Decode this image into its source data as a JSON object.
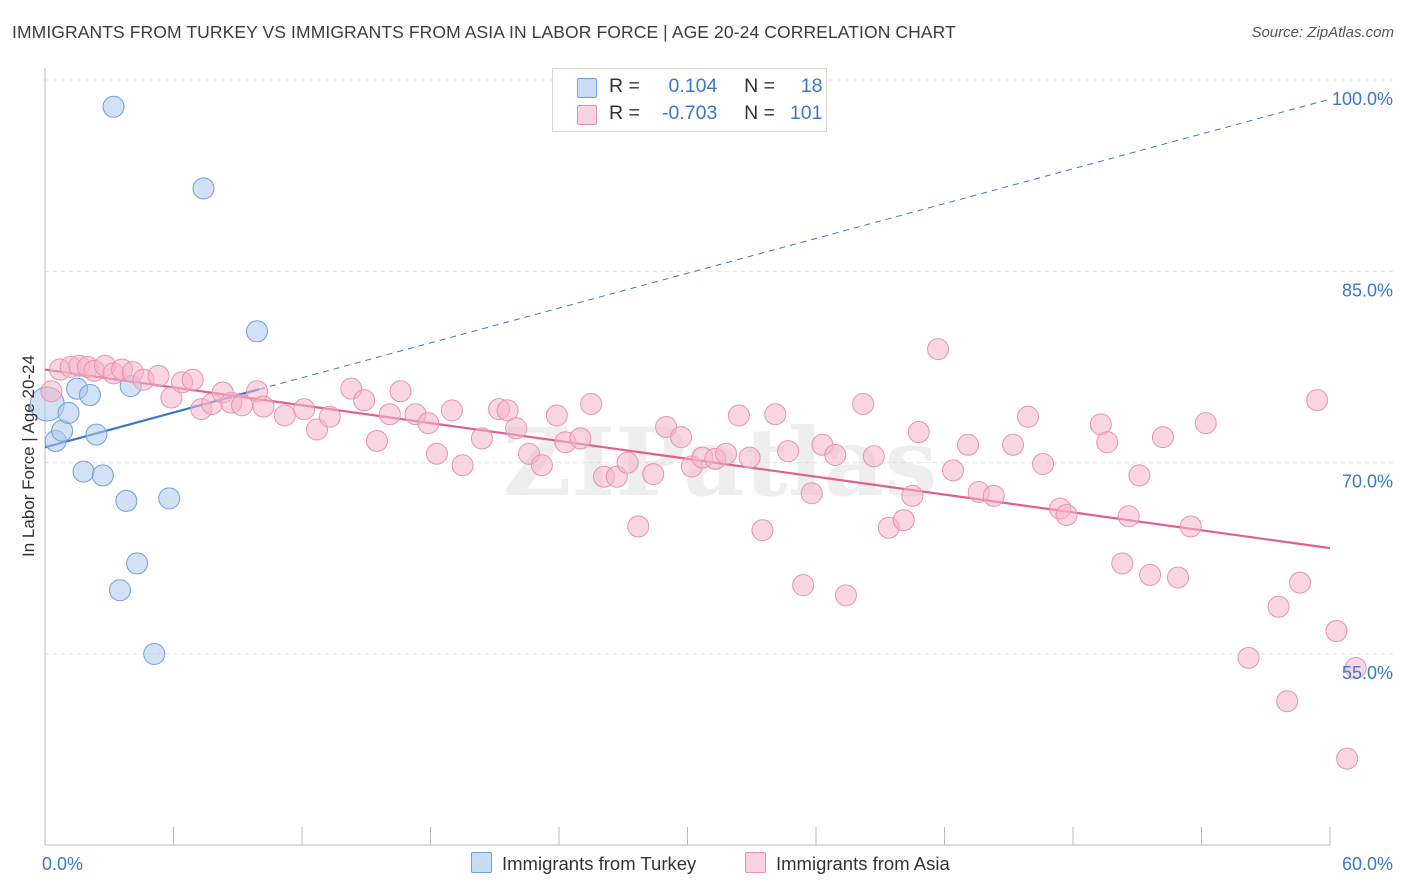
{
  "title": "IMMIGRANTS FROM TURKEY VS IMMIGRANTS FROM ASIA IN LABOR FORCE | AGE 20-24 CORRELATION CHART",
  "source": "Source: ZipAtlas.com",
  "watermark": "ZIPatlas",
  "legend": {
    "rows": [
      {
        "r_label": "R =",
        "r_value": "0.104",
        "n_label": "N =",
        "n_value": "18",
        "color": "#adc8ee"
      },
      {
        "r_label": "R =",
        "r_value": "-0.703",
        "n_label": "N =",
        "n_value": "101",
        "color": "#f6b5ca"
      }
    ]
  },
  "chart_data": {
    "type": "scatter",
    "xlabel": "",
    "ylabel": "In Labor Force | Age 20-24",
    "xlim": [
      0,
      60
    ],
    "ylim": [
      40,
      105
    ],
    "x_tick_labels": [
      {
        "value": 0,
        "label": "0.0%"
      },
      {
        "value": 60,
        "label": "60.0%"
      }
    ],
    "y_tick_labels": [
      {
        "value": 100,
        "label": "100.0%"
      },
      {
        "value": 85,
        "label": "85.0%"
      },
      {
        "value": 70,
        "label": "70.0%"
      },
      {
        "value": 55,
        "label": "55.0%"
      }
    ],
    "grid": true,
    "legend_position": "bottom",
    "series": [
      {
        "name": "Immigrants from Turkey",
        "color": "#adc8ee",
        "stroke": "#6f9fdc",
        "trend_color": "#3a78c9",
        "trend": {
          "x0": 0,
          "y0": 71.2,
          "x1": 60,
          "y1": 98.5,
          "solid_until_x": 10
        },
        "points": [
          [
            0.1,
            74.6
          ],
          [
            0.5,
            71.7
          ],
          [
            0.8,
            72.5
          ],
          [
            1.1,
            73.9
          ],
          [
            1.5,
            75.8
          ],
          [
            1.8,
            69.3
          ],
          [
            2.1,
            75.3
          ],
          [
            2.4,
            72.2
          ],
          [
            2.7,
            69.0
          ],
          [
            3.2,
            97.9
          ],
          [
            3.5,
            60.0
          ],
          [
            3.8,
            67.0
          ],
          [
            4.0,
            76.0
          ],
          [
            4.3,
            62.1
          ],
          [
            5.1,
            55.0
          ],
          [
            5.8,
            67.2
          ],
          [
            7.4,
            91.5
          ],
          [
            9.9,
            80.3
          ]
        ]
      },
      {
        "name": "Immigrants from Asia",
        "color": "#f6b5ca",
        "stroke": "#e893ae",
        "trend_color": "#e0608a",
        "trend": {
          "x0": 0,
          "y0": 77.3,
          "x1": 60,
          "y1": 63.3
        },
        "points": [
          [
            0.3,
            75.6
          ],
          [
            0.7,
            77.3
          ],
          [
            1.2,
            77.5
          ],
          [
            1.6,
            77.6
          ],
          [
            2.0,
            77.5
          ],
          [
            2.3,
            77.2
          ],
          [
            2.8,
            77.6
          ],
          [
            3.2,
            77.0
          ],
          [
            3.6,
            77.3
          ],
          [
            4.1,
            77.1
          ],
          [
            4.6,
            76.5
          ],
          [
            5.3,
            76.8
          ],
          [
            5.9,
            75.1
          ],
          [
            6.4,
            76.3
          ],
          [
            6.9,
            76.5
          ],
          [
            7.3,
            74.2
          ],
          [
            7.8,
            74.6
          ],
          [
            8.3,
            75.5
          ],
          [
            8.7,
            74.7
          ],
          [
            9.2,
            74.5
          ],
          [
            9.9,
            75.6
          ],
          [
            10.2,
            74.4
          ],
          [
            11.2,
            73.7
          ],
          [
            12.1,
            74.2
          ],
          [
            12.7,
            72.6
          ],
          [
            13.3,
            73.6
          ],
          [
            14.3,
            75.8
          ],
          [
            14.9,
            74.9
          ],
          [
            15.5,
            71.7
          ],
          [
            16.1,
            73.8
          ],
          [
            16.6,
            75.6
          ],
          [
            17.3,
            73.8
          ],
          [
            17.9,
            73.1
          ],
          [
            18.3,
            70.7
          ],
          [
            19.0,
            74.1
          ],
          [
            19.5,
            69.8
          ],
          [
            20.4,
            71.9
          ],
          [
            21.2,
            74.2
          ],
          [
            21.6,
            74.1
          ],
          [
            22.0,
            72.7
          ],
          [
            22.6,
            70.7
          ],
          [
            23.2,
            69.8
          ],
          [
            23.9,
            73.7
          ],
          [
            24.3,
            71.6
          ],
          [
            25.0,
            71.9
          ],
          [
            25.5,
            74.6
          ],
          [
            26.1,
            68.9
          ],
          [
            26.7,
            68.9
          ],
          [
            27.2,
            70.0
          ],
          [
            27.7,
            65.0
          ],
          [
            28.4,
            69.1
          ],
          [
            29.0,
            72.8
          ],
          [
            29.7,
            72.0
          ],
          [
            30.2,
            69.7
          ],
          [
            30.7,
            70.4
          ],
          [
            31.3,
            70.3
          ],
          [
            31.8,
            70.7
          ],
          [
            32.4,
            73.7
          ],
          [
            32.9,
            70.4
          ],
          [
            33.5,
            64.7
          ],
          [
            34.1,
            73.8
          ],
          [
            34.7,
            70.9
          ],
          [
            35.4,
            60.4
          ],
          [
            35.8,
            67.6
          ],
          [
            36.3,
            71.4
          ],
          [
            36.9,
            70.6
          ],
          [
            37.4,
            59.6
          ],
          [
            38.2,
            74.6
          ],
          [
            38.7,
            70.5
          ],
          [
            39.4,
            64.9
          ],
          [
            40.1,
            65.5
          ],
          [
            40.5,
            67.4
          ],
          [
            40.8,
            72.4
          ],
          [
            41.7,
            78.9
          ],
          [
            42.4,
            69.4
          ],
          [
            43.1,
            71.4
          ],
          [
            43.6,
            67.7
          ],
          [
            44.3,
            67.4
          ],
          [
            45.2,
            71.4
          ],
          [
            45.9,
            73.6
          ],
          [
            46.6,
            69.9
          ],
          [
            47.4,
            66.4
          ],
          [
            47.7,
            65.9
          ],
          [
            49.3,
            73.0
          ],
          [
            49.6,
            71.6
          ],
          [
            50.3,
            62.1
          ],
          [
            50.6,
            65.8
          ],
          [
            51.1,
            69.0
          ],
          [
            51.6,
            61.2
          ],
          [
            52.2,
            72.0
          ],
          [
            52.9,
            61.0
          ],
          [
            53.5,
            65.0
          ],
          [
            54.2,
            73.1
          ],
          [
            56.2,
            54.7
          ],
          [
            57.6,
            58.7
          ],
          [
            58.0,
            51.3
          ],
          [
            58.6,
            60.6
          ],
          [
            59.4,
            74.9
          ],
          [
            60.3,
            56.8
          ],
          [
            60.8,
            46.8
          ],
          [
            61.2,
            53.9
          ]
        ]
      }
    ]
  }
}
